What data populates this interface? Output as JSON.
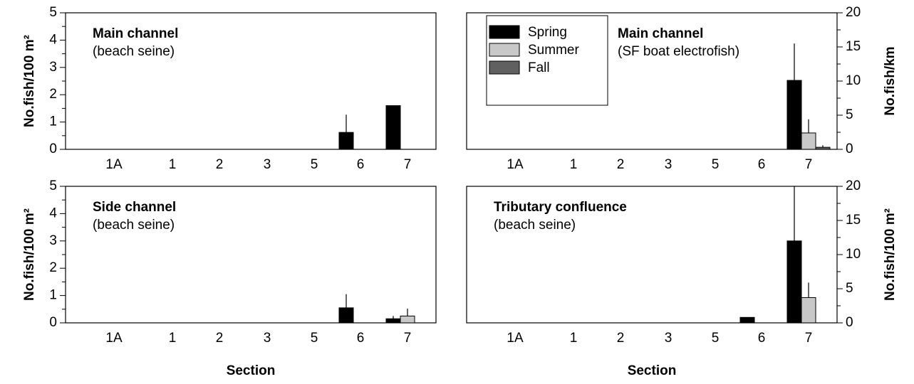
{
  "chart_data": [
    {
      "type": "bar",
      "title": "Main channel",
      "subtitle": "(beach seine)",
      "ylabel": "No.fish/100 m²",
      "categories": [
        "1A",
        "1",
        "2",
        "3",
        "5",
        "6",
        "7"
      ],
      "series": [
        {
          "color": "#000000",
          "values": [
            0,
            0,
            0,
            0,
            0,
            0.62,
            1.6
          ],
          "errors": [
            null,
            null,
            null,
            null,
            null,
            0.65,
            null
          ]
        },
        {
          "color": "#c8c8c8",
          "values": [
            0,
            0,
            0,
            0,
            0,
            0,
            0
          ],
          "errors": [
            null,
            null,
            null,
            null,
            null,
            null,
            null
          ]
        },
        {
          "color": "#606060",
          "values": [
            0,
            0,
            0,
            0,
            0,
            0,
            0
          ],
          "errors": [
            null,
            null,
            null,
            null,
            null,
            null,
            null
          ]
        }
      ],
      "ylim": [
        0,
        5
      ],
      "yticks": [
        0,
        1,
        2,
        3,
        4,
        5
      ],
      "yaxis_side": "left"
    },
    {
      "type": "bar",
      "title": "Main channel",
      "subtitle": "(SF boat electrofish)",
      "ylabel": "No.fish/km",
      "categories": [
        "1A",
        "1",
        "2",
        "3",
        "5",
        "6",
        "7"
      ],
      "series": [
        {
          "name": "Spring",
          "color": "#000000",
          "values": [
            0,
            0,
            0,
            0,
            0,
            0,
            10.1
          ],
          "errors": [
            null,
            null,
            null,
            null,
            null,
            null,
            5.4
          ]
        },
        {
          "name": "Summer",
          "color": "#c8c8c8",
          "values": [
            0,
            0,
            0,
            0,
            0,
            0,
            2.4
          ],
          "errors": [
            null,
            null,
            null,
            null,
            null,
            null,
            2.0
          ]
        },
        {
          "name": "Fall",
          "color": "#606060",
          "values": [
            0,
            0,
            0,
            0,
            0,
            0,
            0.3
          ],
          "errors": [
            null,
            null,
            null,
            null,
            null,
            null,
            0.3
          ]
        }
      ],
      "ylim": [
        0,
        20
      ],
      "yticks": [
        0,
        5,
        10,
        15,
        20
      ],
      "yaxis_side": "right"
    },
    {
      "type": "bar",
      "title": "Side channel",
      "subtitle": "(beach seine)",
      "ylabel": "No.fish/100 m²",
      "xlabel": "Section",
      "categories": [
        "1A",
        "1",
        "2",
        "3",
        "5",
        "6",
        "7"
      ],
      "series": [
        {
          "color": "#000000",
          "values": [
            0,
            0,
            0,
            0,
            0,
            0.55,
            0.15
          ],
          "errors": [
            null,
            null,
            null,
            null,
            null,
            0.5,
            0.1
          ]
        },
        {
          "color": "#c8c8c8",
          "values": [
            0,
            0,
            0,
            0,
            0,
            0,
            0.25
          ],
          "errors": [
            null,
            null,
            null,
            null,
            null,
            null,
            0.27
          ]
        },
        {
          "color": "#606060",
          "values": [
            0,
            0,
            0,
            0,
            0,
            0,
            0
          ],
          "errors": [
            null,
            null,
            null,
            null,
            null,
            null,
            null
          ]
        }
      ],
      "ylim": [
        0,
        5
      ],
      "yticks": [
        0,
        1,
        2,
        3,
        4,
        5
      ],
      "yaxis_side": "left"
    },
    {
      "type": "bar",
      "title": "Tributary confluence",
      "subtitle": "(beach seine)",
      "ylabel": "No.fish/100 m²",
      "xlabel": "Section",
      "categories": [
        "1A",
        "1",
        "2",
        "3",
        "5",
        "6",
        "7"
      ],
      "series": [
        {
          "color": "#000000",
          "values": [
            0,
            0,
            0,
            0,
            0,
            0.8,
            12
          ],
          "errors": [
            null,
            null,
            null,
            null,
            null,
            null,
            8
          ]
        },
        {
          "color": "#c8c8c8",
          "values": [
            0,
            0,
            0,
            0,
            0,
            0,
            3.7
          ],
          "errors": [
            null,
            null,
            null,
            null,
            null,
            null,
            2.2
          ]
        },
        {
          "color": "#606060",
          "values": [
            0,
            0,
            0,
            0,
            0,
            0,
            0
          ],
          "errors": [
            null,
            null,
            null,
            null,
            null,
            null,
            null
          ]
        }
      ],
      "ylim": [
        0,
        20
      ],
      "yticks": [
        0,
        5,
        10,
        15,
        20
      ],
      "yaxis_side": "right"
    }
  ]
}
